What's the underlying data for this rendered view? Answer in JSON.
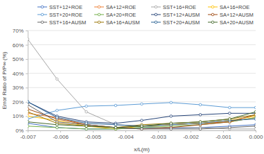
{
  "chart_data": {
    "type": "line",
    "x_label": "x/L(m)",
    "y_label": "Error Ratio of P/P∞ (%)",
    "x": [
      -0.007,
      -0.0061,
      -0.0052,
      -0.0043,
      -0.0035,
      -0.0026,
      -0.0017,
      -0.0008,
      0.0
    ],
    "series": [
      {
        "name": "SST+12+ROE",
        "color": "#4472c4",
        "marker": "circle",
        "values": [
          5,
          2,
          1,
          1,
          2,
          1.5,
          2,
          3,
          4
        ]
      },
      {
        "name": "SA+12+ROE",
        "color": "#ed7d31",
        "marker": "circle",
        "values": [
          12,
          9,
          4,
          2,
          3,
          4,
          5,
          6,
          9
        ]
      },
      {
        "name": "SST+16+ROE",
        "color": "#a5a5a5",
        "marker": "circle",
        "values": [
          64,
          36,
          13,
          4,
          3,
          2,
          2,
          1,
          1
        ]
      },
      {
        "name": "SA+16+ROE",
        "color": "#ffc000",
        "marker": "circle",
        "values": [
          10,
          7,
          3,
          1,
          3,
          4,
          5,
          7,
          10
        ]
      },
      {
        "name": "SST+20+ROE",
        "color": "#5b9bd5",
        "marker": "circle",
        "values": [
          8,
          14,
          17,
          17.5,
          18.5,
          19.5,
          18,
          16,
          16
        ]
      },
      {
        "name": "SA+20+ROE",
        "color": "#70ad47",
        "marker": "circle",
        "values": [
          3,
          2,
          1,
          1,
          2,
          3,
          4,
          6,
          9
        ]
      },
      {
        "name": "SST+12+AUSM",
        "color": "#264478",
        "marker": "circle",
        "values": [
          20,
          10,
          6,
          5,
          7,
          10,
          11,
          12,
          12
        ]
      },
      {
        "name": "SA+12+AUSM",
        "color": "#9e480e",
        "marker": "circle",
        "values": [
          15,
          8,
          4,
          2,
          1,
          2,
          4,
          6,
          11
        ]
      },
      {
        "name": "SST+16+AUSM",
        "color": "#636363",
        "marker": "circle",
        "values": [
          18,
          6,
          4,
          2,
          1,
          1,
          1,
          2,
          3
        ]
      },
      {
        "name": "SA+16+AUSM",
        "color": "#997300",
        "marker": "circle",
        "values": [
          13,
          5,
          3,
          2,
          4,
          5,
          6,
          8,
          11
        ]
      },
      {
        "name": "SST+20+AUSM",
        "color": "#255e91",
        "marker": "circle",
        "values": [
          20,
          9,
          5,
          4,
          3,
          4,
          5,
          7,
          8
        ]
      },
      {
        "name": "SA+20+AUSM",
        "color": "#43682b",
        "marker": "circle",
        "values": [
          6,
          4,
          3,
          2,
          3,
          5,
          6,
          8,
          13
        ]
      }
    ],
    "xlim": [
      -0.007,
      0.0
    ],
    "xticks": [
      {
        "value": -0.007,
        "label": "-0.007"
      },
      {
        "value": -0.006,
        "label": "-0.006"
      },
      {
        "value": -0.005,
        "label": "-0.005"
      },
      {
        "value": -0.004,
        "label": "-0.004"
      },
      {
        "value": -0.003,
        "label": "-0.003"
      },
      {
        "value": -0.002,
        "label": "-0.002"
      },
      {
        "value": -0.001,
        "label": "-0.001"
      },
      {
        "value": 0.0,
        "label": "0.000"
      }
    ],
    "ylim": [
      0,
      70
    ],
    "yticks": [
      {
        "value": 0,
        "label": "0%"
      },
      {
        "value": 10,
        "label": "10%"
      },
      {
        "value": 20,
        "label": "20%"
      },
      {
        "value": 30,
        "label": "30%"
      },
      {
        "value": 40,
        "label": "40%"
      },
      {
        "value": 50,
        "label": "50%"
      },
      {
        "value": 60,
        "label": "60%"
      },
      {
        "value": 70,
        "label": "70%"
      }
    ],
    "grid": true,
    "legend": "top"
  }
}
